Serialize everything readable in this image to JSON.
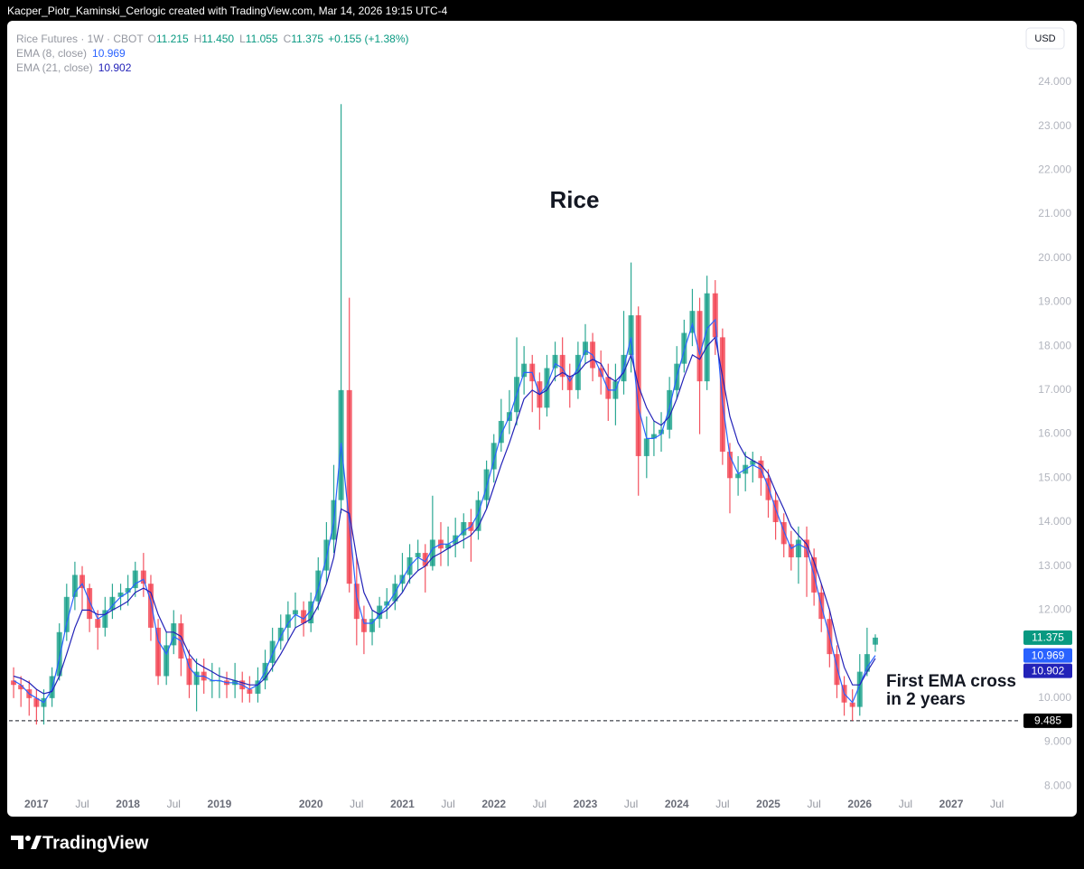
{
  "header": {
    "credit": "Kacper_Piotr_Kaminski_Cerlogic created with TradingView.com, Mar 14, 2026 19:15 UTC-4",
    "currency": "USD",
    "brand": "TradingView"
  },
  "chart_data": {
    "type": "candlestick",
    "title": "Rice",
    "symbol": "Rice Futures · 1W · CBOT",
    "legend_ohlc": [
      {
        "key": "O",
        "label": "11.215"
      },
      {
        "key": "H",
        "label": "11.450"
      },
      {
        "key": "L",
        "label": "11.055"
      },
      {
        "key": "C",
        "label": "11.375"
      }
    ],
    "change_label": "+0.155 (+1.38%)",
    "up_color": "#089981",
    "down_color": "#f23645",
    "grid": false,
    "xlim": [
      2016.7,
      2027.76
    ],
    "ylim": [
      7.8,
      25.25
    ],
    "xticks": [
      {
        "value": 2017,
        "label": "2017"
      },
      {
        "value": 2017.5,
        "label": "Jul"
      },
      {
        "value": 2018,
        "label": "2018"
      },
      {
        "value": 2018.5,
        "label": "Jul"
      },
      {
        "value": 2019,
        "label": "2019"
      },
      {
        "value": 2020,
        "label": "2020"
      },
      {
        "value": 2020.5,
        "label": "Jul"
      },
      {
        "value": 2021,
        "label": "2021"
      },
      {
        "value": 2021.5,
        "label": "Jul"
      },
      {
        "value": 2022,
        "label": "2022"
      },
      {
        "value": 2022.5,
        "label": "Jul"
      },
      {
        "value": 2023,
        "label": "2023"
      },
      {
        "value": 2023.5,
        "label": "Jul"
      },
      {
        "value": 2024,
        "label": "2024"
      },
      {
        "value": 2024.5,
        "label": "Jul"
      },
      {
        "value": 2025,
        "label": "2025"
      },
      {
        "value": 2025.5,
        "label": "Jul"
      },
      {
        "value": 2026,
        "label": "2026"
      },
      {
        "value": 2026.5,
        "label": "Jul"
      },
      {
        "value": 2027,
        "label": "2027"
      },
      {
        "value": 2027.5,
        "label": "Jul"
      }
    ],
    "yticks": [
      {
        "value": 8,
        "label": "8.000"
      },
      {
        "value": 9,
        "label": "9.000"
      },
      {
        "value": 10,
        "label": "10.000"
      },
      {
        "value": 11,
        "label": "11.000"
      },
      {
        "value": 12,
        "label": "12.000"
      },
      {
        "value": 13,
        "label": "13.000"
      },
      {
        "value": 14,
        "label": "14.000"
      },
      {
        "value": 15,
        "label": "15.000"
      },
      {
        "value": 16,
        "label": "16.000"
      },
      {
        "value": 17,
        "label": "17.000"
      },
      {
        "value": 18,
        "label": "18.000"
      },
      {
        "value": 19,
        "label": "19.000"
      },
      {
        "value": 20,
        "label": "20.000"
      },
      {
        "value": 21,
        "label": "21.000"
      },
      {
        "value": 22,
        "label": "22.000"
      },
      {
        "value": 23,
        "label": "23.000"
      },
      {
        "value": 24,
        "label": "24.000"
      }
    ],
    "x": [
      2016.75,
      2016.83,
      2016.92,
      2017,
      2017.08,
      2017.17,
      2017.25,
      2017.33,
      2017.42,
      2017.5,
      2017.58,
      2017.67,
      2017.75,
      2017.83,
      2017.92,
      2018,
      2018.08,
      2018.17,
      2018.25,
      2018.33,
      2018.42,
      2018.5,
      2018.58,
      2018.67,
      2018.75,
      2018.83,
      2018.92,
      2019,
      2019.08,
      2019.17,
      2019.25,
      2019.33,
      2019.42,
      2019.5,
      2019.58,
      2019.67,
      2019.75,
      2019.83,
      2019.92,
      2020,
      2020.08,
      2020.17,
      2020.25,
      2020.33,
      2020.42,
      2020.5,
      2020.58,
      2020.67,
      2020.75,
      2020.83,
      2020.92,
      2021,
      2021.08,
      2021.17,
      2021.25,
      2021.33,
      2021.42,
      2021.5,
      2021.58,
      2021.67,
      2021.75,
      2021.83,
      2021.92,
      2022,
      2022.08,
      2022.17,
      2022.25,
      2022.33,
      2022.42,
      2022.5,
      2022.58,
      2022.67,
      2022.75,
      2022.83,
      2022.92,
      2023,
      2023.08,
      2023.17,
      2023.25,
      2023.33,
      2023.42,
      2023.5,
      2023.58,
      2023.67,
      2023.75,
      2023.83,
      2023.92,
      2024,
      2024.08,
      2024.17,
      2024.25,
      2024.33,
      2024.42,
      2024.5,
      2024.58,
      2024.67,
      2024.75,
      2024.83,
      2024.92,
      2025,
      2025.08,
      2025.17,
      2025.25,
      2025.33,
      2025.42,
      2025.5,
      2025.58,
      2025.67,
      2025.75,
      2025.83,
      2025.92,
      2026,
      2026.08,
      2026.17
    ],
    "open": [
      10.4,
      10.3,
      10.2,
      10.0,
      9.8,
      10.0,
      10.5,
      11.5,
      12.3,
      12.8,
      12.5,
      11.8,
      11.6,
      12.0,
      12.3,
      12.4,
      12.5,
      12.9,
      12.6,
      11.6,
      10.5,
      11.2,
      11.7,
      10.9,
      10.3,
      10.6,
      10.4,
      10.4,
      10.4,
      10.3,
      10.4,
      10.2,
      10.1,
      10.4,
      10.8,
      11.3,
      11.6,
      11.9,
      12.0,
      11.7,
      12.2,
      12.9,
      13.6,
      14.5,
      17.0,
      12.6,
      11.8,
      11.5,
      11.8,
      12.1,
      12.2,
      12.6,
      12.8,
      13.2,
      13.3,
      13.0,
      13.6,
      13.4,
      13.5,
      13.7,
      14.0,
      13.8,
      14.5,
      15.2,
      15.8,
      16.3,
      16.5,
      17.3,
      17.6,
      17.2,
      16.6,
      17.5,
      17.8,
      17.3,
      17.0,
      17.8,
      18.1,
      17.5,
      17.3,
      16.8,
      17.2,
      17.8,
      18.7,
      15.5,
      15.9,
      16.0,
      16.1,
      17.0,
      17.6,
      18.3,
      18.8,
      17.2,
      19.2,
      18.2,
      15.6,
      15.0,
      15.1,
      15.3,
      15.4,
      15.0,
      14.5,
      14.0,
      13.5,
      13.2,
      13.6,
      13.2,
      12.4,
      11.8,
      11.0,
      10.3,
      9.9,
      9.8,
      10.6,
      11.215
    ],
    "high": [
      10.7,
      10.5,
      10.4,
      10.2,
      10.2,
      10.7,
      11.7,
      12.6,
      13.1,
      13.0,
      12.6,
      12.0,
      12.3,
      12.6,
      12.6,
      12.8,
      13.1,
      13.3,
      12.8,
      11.8,
      11.5,
      12.0,
      11.9,
      11.1,
      10.9,
      10.9,
      10.8,
      10.7,
      10.6,
      10.8,
      10.6,
      10.5,
      10.7,
      11.1,
      11.6,
      11.9,
      12.2,
      12.4,
      12.2,
      12.4,
      13.2,
      14.0,
      15.3,
      23.5,
      19.1,
      13.2,
      12.1,
      12.0,
      12.3,
      12.5,
      12.8,
      13.3,
      13.5,
      13.6,
      13.5,
      14.6,
      14.0,
      13.9,
      14.1,
      14.2,
      14.3,
      14.7,
      15.4,
      16.0,
      16.8,
      17.0,
      18.2,
      18.0,
      17.8,
      17.4,
      17.8,
      18.1,
      18.2,
      17.6,
      18.1,
      18.5,
      18.3,
      17.9,
      17.6,
      17.6,
      18.8,
      19.9,
      18.9,
      16.4,
      16.3,
      16.5,
      17.3,
      18.0,
      18.6,
      19.3,
      19.1,
      19.6,
      19.5,
      18.4,
      15.8,
      15.5,
      15.6,
      15.6,
      15.5,
      15.2,
      14.7,
      14.2,
      13.8,
      13.9,
      13.9,
      13.4,
      12.6,
      12.0,
      11.2,
      10.5,
      10.2,
      11.0,
      11.6,
      11.45
    ],
    "low": [
      10.0,
      9.8,
      9.6,
      9.4,
      9.4,
      9.8,
      10.4,
      11.3,
      12.0,
      12.0,
      11.5,
      11.1,
      11.4,
      11.8,
      12.0,
      12.1,
      12.3,
      12.3,
      11.3,
      10.3,
      10.3,
      11.0,
      10.5,
      10.0,
      9.7,
      10.1,
      10.0,
      10.0,
      10.0,
      10.0,
      9.9,
      9.9,
      9.9,
      10.2,
      10.6,
      11.1,
      11.3,
      11.6,
      11.4,
      11.5,
      12.0,
      12.6,
      13.3,
      14.2,
      12.4,
      11.2,
      11.0,
      11.2,
      11.6,
      11.8,
      12.0,
      12.4,
      12.6,
      12.9,
      12.4,
      12.9,
      13.0,
      13.0,
      13.2,
      13.4,
      13.1,
      13.6,
      14.3,
      14.9,
      15.6,
      16.0,
      16.2,
      16.9,
      16.5,
      16.1,
      16.4,
      17.2,
      17.0,
      16.6,
      16.8,
      17.6,
      17.2,
      16.9,
      16.3,
      16.2,
      16.9,
      17.4,
      14.6,
      15.0,
      15.5,
      15.6,
      15.9,
      16.8,
      17.4,
      18.0,
      16.0,
      17.0,
      17.8,
      15.3,
      14.2,
      14.6,
      14.7,
      14.9,
      14.6,
      14.1,
      13.6,
      13.2,
      12.9,
      12.6,
      12.3,
      12.1,
      11.5,
      10.7,
      10.0,
      9.6,
      9.485,
      9.6,
      10.5,
      11.055
    ],
    "close": [
      10.3,
      10.2,
      10.0,
      9.8,
      10.0,
      10.5,
      11.5,
      12.3,
      12.8,
      12.5,
      11.8,
      11.6,
      12.0,
      12.3,
      12.4,
      12.5,
      12.9,
      12.6,
      11.6,
      10.5,
      11.2,
      11.7,
      10.9,
      10.3,
      10.6,
      10.4,
      10.4,
      10.4,
      10.3,
      10.4,
      10.2,
      10.1,
      10.4,
      10.8,
      11.3,
      11.6,
      11.9,
      12.0,
      11.7,
      12.2,
      12.9,
      13.6,
      14.5,
      17.0,
      12.6,
      11.8,
      11.5,
      11.8,
      12.1,
      12.2,
      12.6,
      12.8,
      13.2,
      13.3,
      13.0,
      13.6,
      13.4,
      13.5,
      13.7,
      14.0,
      13.8,
      14.5,
      15.2,
      15.8,
      16.3,
      16.5,
      17.3,
      17.6,
      17.2,
      16.6,
      17.5,
      17.8,
      17.3,
      17.0,
      17.8,
      18.1,
      17.5,
      17.3,
      16.8,
      17.2,
      17.8,
      18.7,
      15.5,
      15.9,
      16.0,
      16.1,
      17.0,
      17.6,
      18.3,
      18.8,
      17.2,
      19.2,
      18.2,
      15.6,
      15.0,
      15.1,
      15.3,
      15.4,
      15.0,
      14.5,
      14.0,
      13.5,
      13.2,
      13.6,
      13.2,
      12.4,
      11.8,
      11.0,
      10.3,
      9.9,
      9.8,
      10.6,
      11.0,
      11.375
    ],
    "series": [
      {
        "name": "EMA (8, close)",
        "color": "#2962ff",
        "values": [
          10.4,
          10.3,
          10.1,
          10.0,
          9.9,
          10.2,
          10.9,
          11.7,
          12.4,
          12.6,
          12.2,
          11.8,
          11.9,
          12.1,
          12.3,
          12.4,
          12.6,
          12.7,
          12.2,
          11.3,
          11.0,
          11.4,
          11.3,
          10.7,
          10.5,
          10.5,
          10.4,
          10.4,
          10.35,
          10.35,
          10.3,
          10.2,
          10.3,
          10.6,
          11.0,
          11.4,
          11.7,
          11.9,
          11.8,
          12.0,
          12.5,
          13.2,
          14.0,
          15.8,
          14.0,
          12.3,
          11.7,
          11.7,
          11.9,
          12.1,
          12.4,
          12.7,
          13.0,
          13.2,
          13.1,
          13.4,
          13.5,
          13.5,
          13.6,
          13.8,
          13.9,
          14.2,
          14.8,
          15.4,
          16.0,
          16.4,
          16.9,
          17.4,
          17.4,
          16.9,
          17.1,
          17.6,
          17.5,
          17.2,
          17.5,
          17.9,
          17.8,
          17.4,
          17.0,
          17.0,
          17.5,
          18.2,
          16.6,
          15.9,
          15.9,
          16.0,
          16.6,
          17.3,
          17.9,
          18.5,
          17.8,
          18.4,
          18.6,
          16.7,
          15.5,
          15.1,
          15.2,
          15.3,
          15.2,
          14.8,
          14.3,
          13.8,
          13.4,
          13.5,
          13.4,
          12.8,
          12.1,
          11.4,
          10.7,
          10.1,
          9.9,
          10.3,
          10.7,
          10.969
        ]
      },
      {
        "name": "EMA (21, close)",
        "color": "#2222b8",
        "values": [
          10.5,
          10.45,
          10.35,
          10.2,
          10.1,
          10.15,
          10.5,
          11.0,
          11.6,
          12.0,
          12.0,
          11.9,
          11.9,
          12.0,
          12.1,
          12.2,
          12.4,
          12.5,
          12.4,
          11.9,
          11.5,
          11.5,
          11.4,
          11.0,
          10.8,
          10.7,
          10.6,
          10.5,
          10.45,
          10.4,
          10.35,
          10.3,
          10.3,
          10.45,
          10.7,
          11.0,
          11.3,
          11.6,
          11.7,
          11.8,
          12.1,
          12.6,
          13.2,
          14.3,
          14.2,
          13.2,
          12.4,
          12.0,
          11.9,
          12.0,
          12.2,
          12.4,
          12.7,
          12.9,
          13.0,
          13.2,
          13.3,
          13.4,
          13.5,
          13.6,
          13.7,
          13.9,
          14.3,
          14.8,
          15.3,
          15.8,
          16.3,
          16.8,
          17.0,
          16.9,
          17.0,
          17.3,
          17.4,
          17.3,
          17.4,
          17.6,
          17.7,
          17.6,
          17.3,
          17.2,
          17.4,
          17.8,
          17.1,
          16.6,
          16.3,
          16.2,
          16.4,
          16.8,
          17.3,
          17.8,
          17.7,
          18.0,
          18.2,
          17.3,
          16.4,
          15.8,
          15.5,
          15.4,
          15.3,
          15.1,
          14.7,
          14.3,
          13.9,
          13.7,
          13.5,
          13.1,
          12.6,
          12.0,
          11.3,
          10.7,
          10.3,
          10.3,
          10.6,
          10.902
        ]
      }
    ],
    "hline": 9.485,
    "annotation": [
      "First EMA cross",
      "in 2 years"
    ]
  }
}
